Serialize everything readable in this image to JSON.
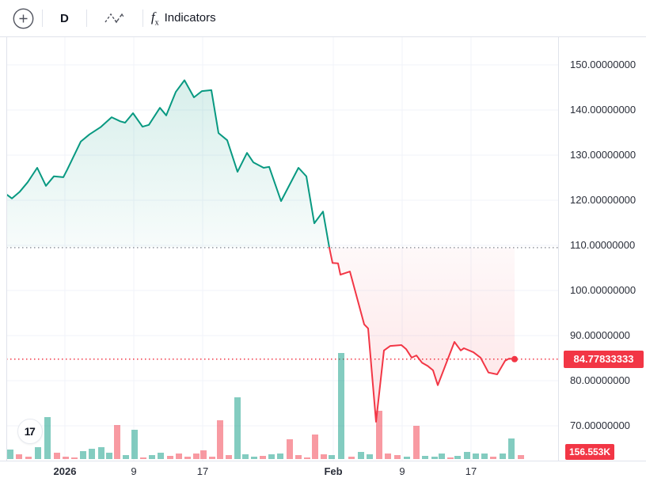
{
  "toolbar": {
    "timeframe": "D",
    "indicators_label": "Indicators",
    "icons": [
      "circle-plus-icon",
      "line-style-icon",
      "fx-icon"
    ]
  },
  "price_axis": {
    "labels": [
      "150.00000000",
      "140.00000000",
      "130.00000000",
      "120.00000000",
      "110.00000000",
      "100.00000000",
      "90.00000000",
      "80.00000000",
      "70.00000000"
    ],
    "label_prices": [
      150,
      140,
      130,
      120,
      110,
      100,
      90,
      80,
      70
    ],
    "last_price_badge": "84.77833333",
    "volume_badge": "156.553K"
  },
  "time_axis": {
    "labels": [
      {
        "text": "2026",
        "x": 82,
        "major": true
      },
      {
        "text": "9",
        "x": 169,
        "major": false
      },
      {
        "text": "17",
        "x": 256,
        "major": false
      },
      {
        "text": "Feb",
        "x": 421,
        "major": true
      },
      {
        "text": "9",
        "x": 508,
        "major": false
      },
      {
        "text": "17",
        "x": 595,
        "major": false
      }
    ]
  },
  "logo": {
    "text": "17"
  },
  "colors": {
    "up_line": "#089981",
    "down_line": "#f23645",
    "up_fill": "rgba(8,153,129,0.10)",
    "down_fill": "rgba(242,54,69,0.09)",
    "vol_up": "rgba(8,153,129,0.50)",
    "vol_down": "rgba(242,54,69,0.50)",
    "grid": "#f0f3fa",
    "baseline_dots": "#9598a1",
    "badge_bg": "#f23645"
  },
  "chart_data": {
    "type": "area",
    "subtype": "baseline-line-with-volume",
    "title": "",
    "ylim": [
      65,
      152
    ],
    "baseline_price": 109.5,
    "last_price": 84.77833333,
    "last_volume": "156.553K",
    "grid": true,
    "series": [
      {
        "name": "price-above-baseline",
        "points_x_price": [
          [
            9,
            121.2
          ],
          [
            15,
            120.4
          ],
          [
            25,
            121.9
          ],
          [
            35,
            124.0
          ],
          [
            47,
            127.2
          ],
          [
            58,
            123.2
          ],
          [
            68,
            125.3
          ],
          [
            80,
            125.1
          ],
          [
            85,
            126.8
          ],
          [
            102,
            133.0
          ],
          [
            113,
            134.6
          ],
          [
            127,
            136.2
          ],
          [
            141,
            138.4
          ],
          [
            152,
            137.5
          ],
          [
            158,
            137.2
          ],
          [
            168,
            139.3
          ],
          [
            180,
            136.3
          ],
          [
            188,
            136.7
          ],
          [
            202,
            140.5
          ],
          [
            210,
            138.8
          ],
          [
            222,
            144.0
          ],
          [
            233,
            146.6
          ],
          [
            245,
            142.8
          ],
          [
            255,
            144.2
          ],
          [
            267,
            144.4
          ],
          [
            276,
            134.9
          ],
          [
            287,
            133.3
          ],
          [
            300,
            126.3
          ],
          [
            312,
            130.5
          ],
          [
            320,
            128.4
          ],
          [
            333,
            127.2
          ],
          [
            340,
            127.4
          ],
          [
            355,
            119.8
          ],
          [
            377,
            127.2
          ],
          [
            387,
            125.3
          ],
          [
            397,
            114.9
          ],
          [
            408,
            117.5
          ],
          [
            416,
            109.5
          ]
        ]
      },
      {
        "name": "price-below-baseline",
        "points_x_price": [
          [
            416,
            109.5
          ],
          [
            420,
            106.1
          ],
          [
            427,
            106.0
          ],
          [
            430,
            103.5
          ],
          [
            442,
            104.2
          ],
          [
            450,
            99.0
          ],
          [
            460,
            92.5
          ],
          [
            465,
            91.6
          ],
          [
            475,
            70.9
          ],
          [
            485,
            86.7
          ],
          [
            493,
            87.7
          ],
          [
            507,
            87.9
          ],
          [
            513,
            87.0
          ],
          [
            520,
            85.1
          ],
          [
            526,
            85.6
          ],
          [
            533,
            84.0
          ],
          [
            540,
            83.3
          ],
          [
            547,
            82.3
          ],
          [
            553,
            79.0
          ],
          [
            574,
            88.6
          ],
          [
            582,
            86.7
          ],
          [
            586,
            87.2
          ],
          [
            598,
            86.3
          ],
          [
            607,
            85.1
          ],
          [
            617,
            81.8
          ],
          [
            628,
            81.4
          ],
          [
            638,
            84.4
          ],
          [
            643,
            84.9
          ],
          [
            650,
            84.77833333
          ]
        ]
      }
    ],
    "volume_bars_x_h_dir": [
      [
        13,
        12,
        "g"
      ],
      [
        24,
        6,
        "r"
      ],
      [
        36,
        3,
        "r"
      ],
      [
        48,
        15,
        "g"
      ],
      [
        60,
        53,
        "g"
      ],
      [
        72,
        8,
        "r"
      ],
      [
        83,
        3,
        "r"
      ],
      [
        94,
        2,
        "r"
      ],
      [
        105,
        10,
        "g"
      ],
      [
        116,
        13,
        "g"
      ],
      [
        128,
        15,
        "g"
      ],
      [
        138,
        8,
        "g"
      ],
      [
        148,
        43,
        "r"
      ],
      [
        159,
        5,
        "g"
      ],
      [
        170,
        37,
        "g"
      ],
      [
        181,
        2,
        "r"
      ],
      [
        192,
        5,
        "g"
      ],
      [
        203,
        8,
        "g"
      ],
      [
        215,
        4,
        "r"
      ],
      [
        226,
        7,
        "r"
      ],
      [
        237,
        3,
        "r"
      ],
      [
        248,
        7,
        "r"
      ],
      [
        257,
        11,
        "r"
      ],
      [
        268,
        3,
        "r"
      ],
      [
        278,
        49,
        "r"
      ],
      [
        289,
        5,
        "r"
      ],
      [
        300,
        78,
        "g"
      ],
      [
        310,
        6,
        "g"
      ],
      [
        321,
        3,
        "g"
      ],
      [
        332,
        4,
        "r"
      ],
      [
        343,
        6,
        "g"
      ],
      [
        354,
        7,
        "g"
      ],
      [
        366,
        25,
        "r"
      ],
      [
        377,
        5,
        "r"
      ],
      [
        388,
        2,
        "r"
      ],
      [
        398,
        31,
        "r"
      ],
      [
        409,
        6,
        "r"
      ],
      [
        419,
        5,
        "g"
      ],
      [
        431,
        134,
        "g"
      ],
      [
        444,
        3,
        "r"
      ],
      [
        456,
        9,
        "g"
      ],
      [
        467,
        6,
        "g"
      ],
      [
        479,
        61,
        "r"
      ],
      [
        490,
        7,
        "r"
      ],
      [
        502,
        5,
        "r"
      ],
      [
        514,
        3,
        "g"
      ],
      [
        526,
        42,
        "r"
      ],
      [
        537,
        4,
        "g"
      ],
      [
        549,
        3,
        "g"
      ],
      [
        558,
        7,
        "g"
      ],
      [
        569,
        2,
        "r"
      ],
      [
        578,
        4,
        "g"
      ],
      [
        590,
        9,
        "g"
      ],
      [
        601,
        7,
        "g"
      ],
      [
        612,
        7,
        "g"
      ],
      [
        623,
        3,
        "r"
      ],
      [
        635,
        7,
        "g"
      ],
      [
        646,
        26,
        "g"
      ],
      [
        658,
        5,
        "r"
      ]
    ]
  }
}
